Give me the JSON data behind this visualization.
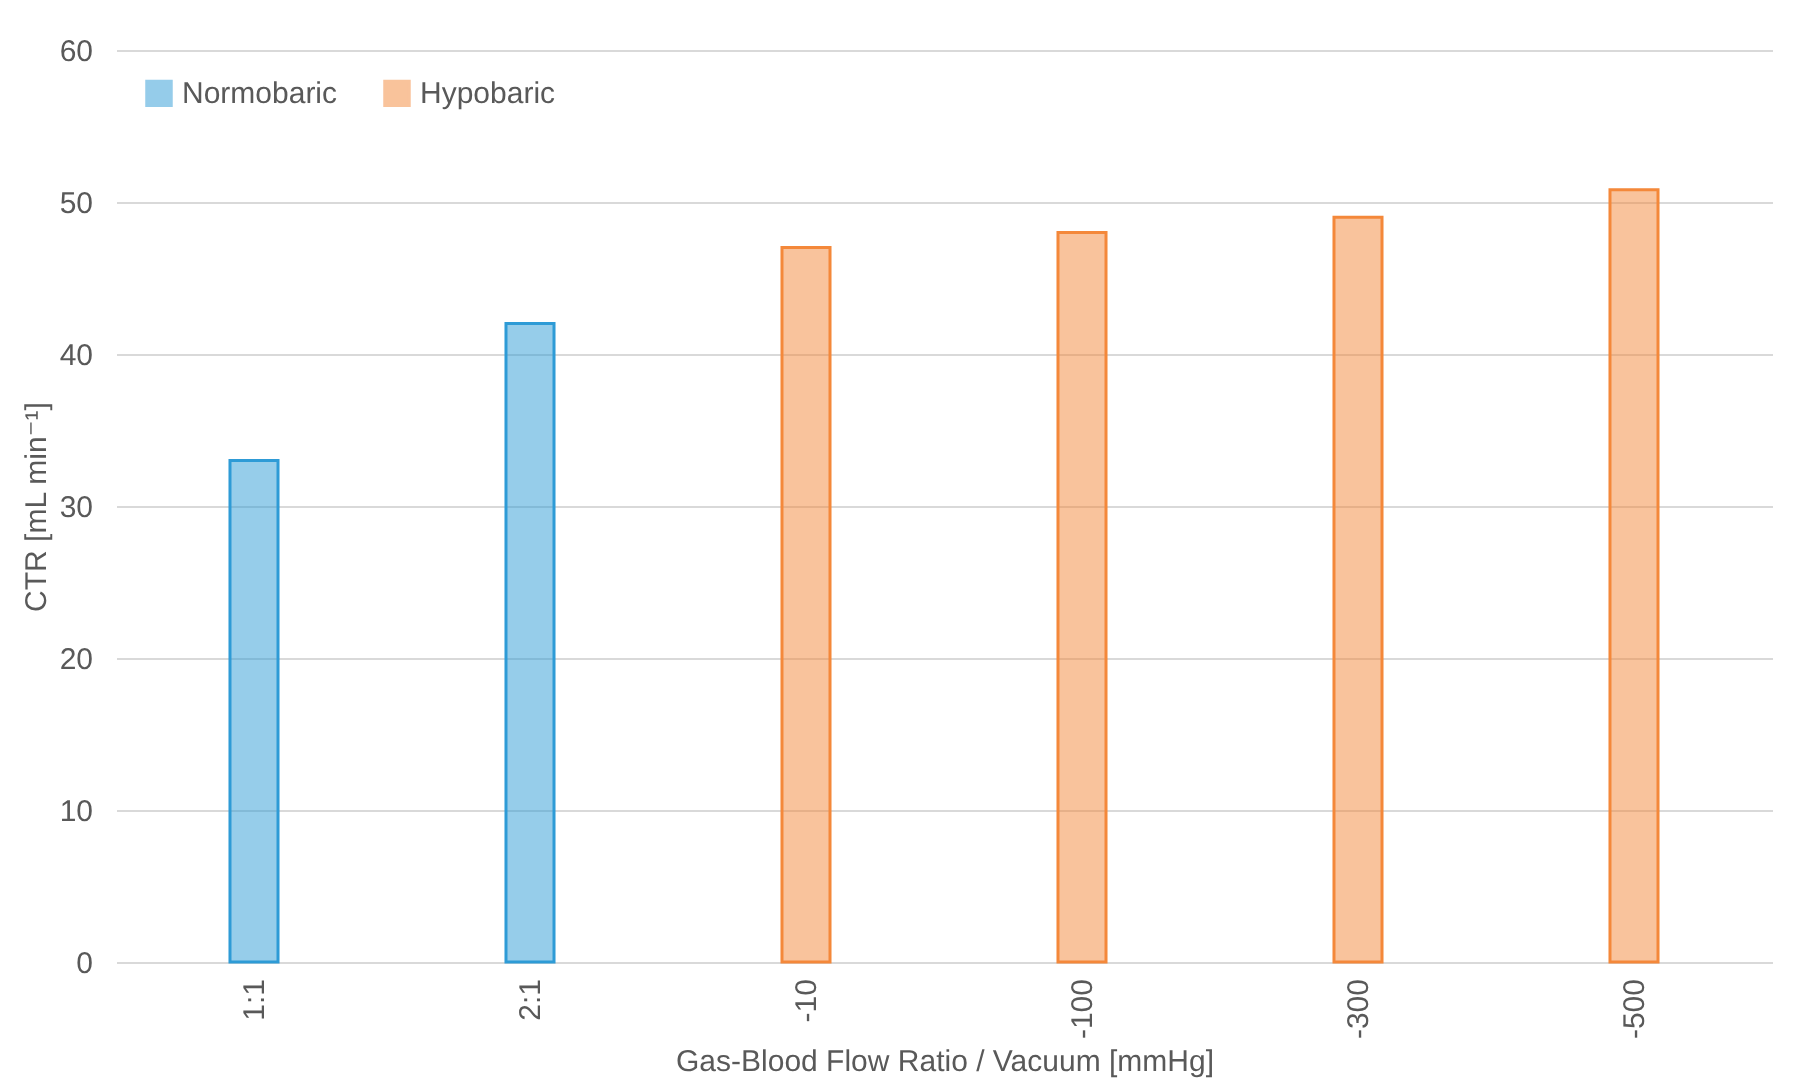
{
  "chart_data": {
    "type": "bar",
    "xlabel": "Gas-Blood Flow Ratio / Vacuum [mmHg]",
    "ylabel": "CTR [mL min⁻¹]",
    "categories": [
      "1:1",
      "2:1",
      "-10",
      "-100",
      "-300",
      "-500"
    ],
    "series": [
      {
        "name": "Normobaric",
        "color": "#2e9bd6",
        "values": [
          33,
          42,
          null,
          null,
          null,
          null
        ]
      },
      {
        "name": "Hypobaric",
        "color": "#f4883a",
        "values": [
          null,
          null,
          47,
          48,
          49,
          50.8
        ]
      }
    ],
    "ylim": [
      0,
      60
    ],
    "yticks": [
      0,
      10,
      20,
      30,
      40,
      50,
      60
    ],
    "grid": "y",
    "legend": "top left"
  }
}
